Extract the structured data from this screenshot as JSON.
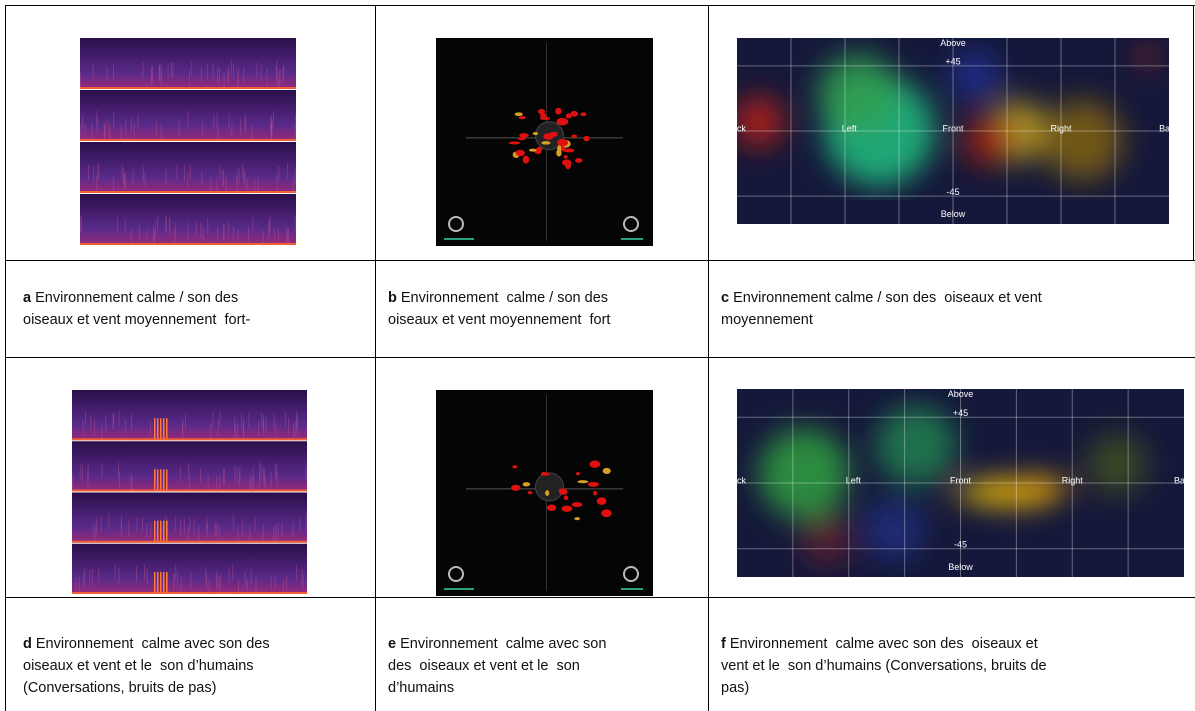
{
  "cells": [
    {
      "letter": "a",
      "lines": [
        "Environnement calme / son des",
        "oiseaux et vent moyennement  fort-"
      ]
    },
    {
      "letter": "b",
      "lines": [
        "Environnement  calme / son des",
        "oiseaux et vent moyennement  fort"
      ]
    },
    {
      "letter": "c",
      "lines": [
        "Environnement calme / son des  oiseaux et vent",
        "moyennement"
      ]
    },
    {
      "letter": "d",
      "lines": [
        "Environnement  calme avec son des",
        "oiseaux et vent et le  son d’humains",
        "(Conversations, bruits de pas)"
      ]
    },
    {
      "letter": "e",
      "lines": [
        "Environnement  calme avec son",
        "des  oiseaux et vent et le  son",
        "d’humains"
      ]
    },
    {
      "letter": "f",
      "lines": [
        "Environnement  calme avec son des  oiseaux et",
        "vent et le  son d’humains (Conversations, bruits de",
        "pas)"
      ]
    }
  ],
  "heatmap_labels": {
    "above": "Above",
    "up": "+45",
    "left": "Left",
    "front": "Front",
    "right": "Right",
    "back_left": "ck",
    "back_right": "Ba",
    "down": "-45",
    "below": "Below"
  }
}
